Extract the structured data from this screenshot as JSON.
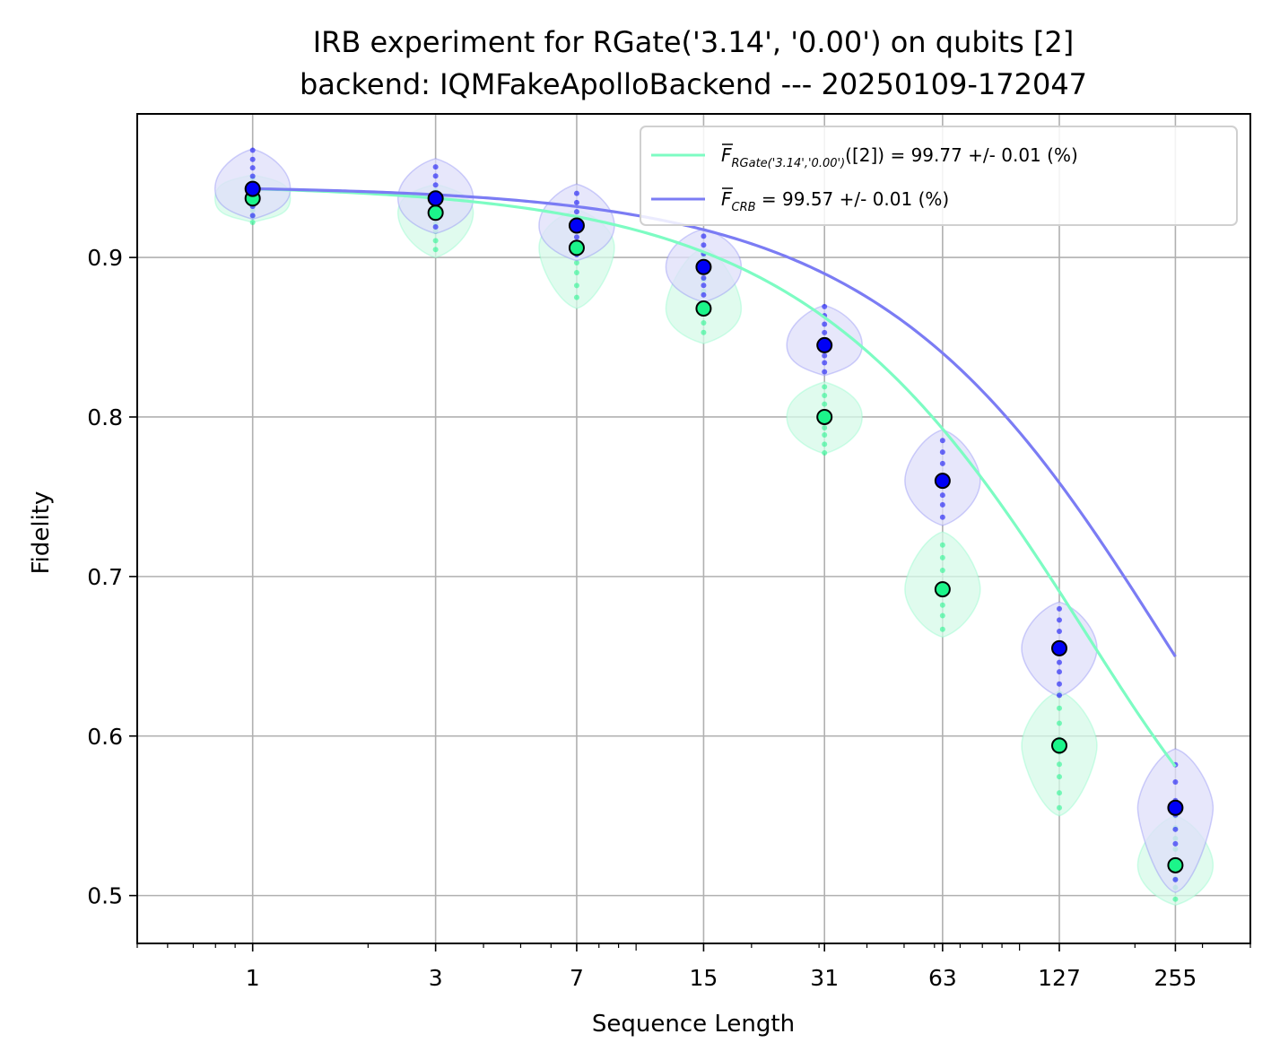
{
  "chart_data": {
    "type": "line",
    "title": "IRB experiment for RGate('3.14', '0.00') on qubits [2]",
    "subtitle": "backend: IQMFakeApolloBackend --- 20250109-172047",
    "xlabel": "Sequence Length",
    "ylabel": "Fidelity",
    "x_scale": "log",
    "x": [
      1,
      3,
      7,
      15,
      31,
      63,
      127,
      255
    ],
    "x_tick_labels": [
      "1",
      "3",
      "7",
      "15",
      "31",
      "63",
      "127",
      "255"
    ],
    "y_ticks": [
      0.5,
      0.6,
      0.7,
      0.8,
      0.9
    ],
    "y_tick_labels": [
      "0.5",
      "0.6",
      "0.7",
      "0.8",
      "0.9"
    ],
    "xlim": [
      0.5,
      400
    ],
    "ylim": [
      0.47,
      0.99
    ],
    "grid": true,
    "legend_position": "upper right",
    "series": [
      {
        "name": "RGate('3.14','0.00')([2]) = 99.77 +/- 0.01 (%)",
        "legend_main": "F",
        "legend_subscript": "RGate('3.14','0.00')",
        "legend_rest": "([2]) = 99.77 +/- 0.01 (%)",
        "color": "#7dfcc3",
        "marker_color": "#1cf58a",
        "violin_color": "#d6fae8",
        "means": [
          0.937,
          0.928,
          0.906,
          0.868,
          0.8,
          0.692,
          0.594,
          0.519
        ],
        "violin_ranges": [
          [
            0.922,
            0.952
          ],
          [
            0.9,
            0.946
          ],
          [
            0.868,
            0.93
          ],
          [
            0.846,
            0.906
          ],
          [
            0.777,
            0.822
          ],
          [
            0.662,
            0.728
          ],
          [
            0.55,
            0.628
          ],
          [
            0.494,
            0.55
          ]
        ],
        "fit_A": 0.446,
        "fit_p": 0.99333,
        "fit_B": 0.5
      },
      {
        "name": "CRB = 99.57 +/- 0.01 (%)",
        "legend_main": "F",
        "legend_subscript": "CRB",
        "legend_rest": " = 99.57 +/- 0.01 (%)",
        "color": "#7b7cf4",
        "marker_color": "#0000f5",
        "violin_color": "#dfdffa",
        "means": [
          0.943,
          0.937,
          0.92,
          0.894,
          0.845,
          0.76,
          0.655,
          0.555
        ],
        "violin_ranges": [
          [
            0.924,
            0.968
          ],
          [
            0.915,
            0.962
          ],
          [
            0.898,
            0.946
          ],
          [
            0.872,
            0.918
          ],
          [
            0.826,
            0.87
          ],
          [
            0.732,
            0.792
          ],
          [
            0.625,
            0.684
          ],
          [
            0.502,
            0.592
          ]
        ],
        "fit_A": 0.445,
        "fit_p": 0.99574,
        "fit_B": 0.5
      }
    ]
  }
}
